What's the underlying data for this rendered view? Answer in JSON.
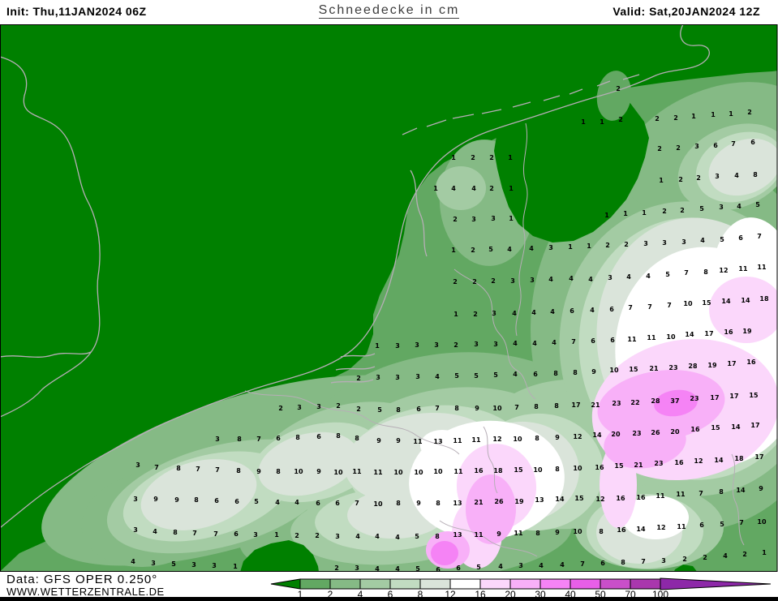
{
  "header": {
    "init_label": "Init: Thu,11JAN2024 06Z",
    "title": "Schneedecke in cm",
    "valid_label": "Valid: Sat,20JAN2024 12Z"
  },
  "footer": {
    "data_source": "Data: GFS OPER 0.250°",
    "website": "WWW.WETTERZENTRALE.DE"
  },
  "legend": {
    "labels": [
      "1",
      "2",
      "4",
      "6",
      "8",
      "12",
      "16",
      "20",
      "30",
      "40",
      "50",
      "70",
      "100"
    ],
    "colors": [
      "#008000",
      "#62a862",
      "#85ba85",
      "#a3cba3",
      "#c1dcc1",
      "#dae4da",
      "#ffffff",
      "#fbd7fb",
      "#f8b0f8",
      "#f583f5",
      "#e85fe8",
      "#c94fc9",
      "#a937ad",
      "#8d28a8"
    ]
  },
  "map": {
    "background": "#008000",
    "coast_color": "#b6aeb6",
    "value_color": "#000000",
    "values": [
      [
        762,
        110,
        "2"
      ],
      [
        719,
        151,
        "1"
      ],
      [
        742,
        151,
        "1"
      ],
      [
        765,
        148,
        "2"
      ],
      [
        810,
        147,
        "2"
      ],
      [
        833,
        146,
        "2"
      ],
      [
        855,
        144,
        "1"
      ],
      [
        879,
        142,
        "1"
      ],
      [
        901,
        141,
        "1"
      ],
      [
        924,
        139,
        "2"
      ],
      [
        559,
        195,
        "1"
      ],
      [
        583,
        195,
        "2"
      ],
      [
        606,
        195,
        "2"
      ],
      [
        629,
        195,
        "1"
      ],
      [
        813,
        184,
        "2"
      ],
      [
        836,
        183,
        "2"
      ],
      [
        859,
        181,
        "3"
      ],
      [
        882,
        180,
        "6"
      ],
      [
        904,
        178,
        "7"
      ],
      [
        928,
        176,
        "6"
      ],
      [
        537,
        233,
        "1"
      ],
      [
        559,
        233,
        "4"
      ],
      [
        584,
        233,
        "4"
      ],
      [
        606,
        233,
        "2"
      ],
      [
        630,
        233,
        "1"
      ],
      [
        815,
        223,
        "1"
      ],
      [
        839,
        222,
        "2"
      ],
      [
        861,
        220,
        "2"
      ],
      [
        884,
        218,
        "3"
      ],
      [
        908,
        217,
        "4"
      ],
      [
        931,
        216,
        "8"
      ],
      [
        561,
        271,
        "2"
      ],
      [
        584,
        271,
        "3"
      ],
      [
        608,
        270,
        "3"
      ],
      [
        630,
        270,
        "1"
      ],
      [
        748,
        266,
        "1"
      ],
      [
        771,
        264,
        "1"
      ],
      [
        794,
        263,
        "1"
      ],
      [
        819,
        261,
        "2"
      ],
      [
        841,
        260,
        "2"
      ],
      [
        865,
        258,
        "5"
      ],
      [
        889,
        256,
        "3"
      ],
      [
        911,
        255,
        "4"
      ],
      [
        934,
        253,
        "5"
      ],
      [
        559,
        309,
        "1"
      ],
      [
        583,
        309,
        "2"
      ],
      [
        605,
        308,
        "5"
      ],
      [
        628,
        308,
        "4"
      ],
      [
        655,
        307,
        "4"
      ],
      [
        679,
        306,
        "3"
      ],
      [
        703,
        305,
        "1"
      ],
      [
        726,
        304,
        "1"
      ],
      [
        749,
        303,
        "2"
      ],
      [
        772,
        302,
        "2"
      ],
      [
        796,
        301,
        "3"
      ],
      [
        819,
        300,
        "3"
      ],
      [
        843,
        299,
        "3"
      ],
      [
        866,
        297,
        "4"
      ],
      [
        890,
        296,
        "5"
      ],
      [
        913,
        294,
        "6"
      ],
      [
        936,
        292,
        "7"
      ],
      [
        561,
        348,
        "2"
      ],
      [
        585,
        348,
        "2"
      ],
      [
        608,
        347,
        "2"
      ],
      [
        632,
        347,
        "3"
      ],
      [
        656,
        346,
        "3"
      ],
      [
        679,
        345,
        "4"
      ],
      [
        704,
        344,
        "4"
      ],
      [
        728,
        345,
        "4"
      ],
      [
        752,
        343,
        "3"
      ],
      [
        775,
        342,
        "4"
      ],
      [
        799,
        341,
        "4"
      ],
      [
        823,
        339,
        "5"
      ],
      [
        846,
        337,
        "7"
      ],
      [
        870,
        336,
        "8"
      ],
      [
        892,
        334,
        "12"
      ],
      [
        916,
        332,
        "11"
      ],
      [
        939,
        330,
        "11"
      ],
      [
        562,
        388,
        "1"
      ],
      [
        586,
        388,
        "2"
      ],
      [
        609,
        387,
        "3"
      ],
      [
        634,
        387,
        "4"
      ],
      [
        658,
        386,
        "4"
      ],
      [
        681,
        385,
        "4"
      ],
      [
        705,
        384,
        "6"
      ],
      [
        730,
        383,
        "4"
      ],
      [
        754,
        382,
        "6"
      ],
      [
        777,
        380,
        "7"
      ],
      [
        801,
        379,
        "7"
      ],
      [
        825,
        377,
        "7"
      ],
      [
        848,
        375,
        "10"
      ],
      [
        871,
        374,
        "15"
      ],
      [
        895,
        372,
        "14"
      ],
      [
        919,
        371,
        "14"
      ],
      [
        942,
        369,
        "18"
      ],
      [
        465,
        427,
        "1"
      ],
      [
        490,
        427,
        "3"
      ],
      [
        514,
        426,
        "3"
      ],
      [
        538,
        426,
        "3"
      ],
      [
        562,
        426,
        "2"
      ],
      [
        587,
        425,
        "3"
      ],
      [
        611,
        425,
        "3"
      ],
      [
        635,
        424,
        "4"
      ],
      [
        659,
        424,
        "4"
      ],
      [
        683,
        423,
        "4"
      ],
      [
        707,
        422,
        "7"
      ],
      [
        731,
        421,
        "6"
      ],
      [
        755,
        420,
        "6"
      ],
      [
        779,
        419,
        "11"
      ],
      [
        803,
        417,
        "11"
      ],
      [
        827,
        416,
        "10"
      ],
      [
        850,
        413,
        "14"
      ],
      [
        874,
        412,
        "17"
      ],
      [
        898,
        410,
        "16"
      ],
      [
        921,
        409,
        "19"
      ],
      [
        442,
        467,
        "2"
      ],
      [
        466,
        466,
        "3"
      ],
      [
        490,
        466,
        "3"
      ],
      [
        515,
        465,
        "3"
      ],
      [
        539,
        465,
        "4"
      ],
      [
        563,
        464,
        "5"
      ],
      [
        587,
        464,
        "5"
      ],
      [
        611,
        463,
        "5"
      ],
      [
        635,
        462,
        "4"
      ],
      [
        660,
        462,
        "6"
      ],
      [
        685,
        461,
        "8"
      ],
      [
        709,
        460,
        "8"
      ],
      [
        732,
        459,
        "9"
      ],
      [
        757,
        457,
        "10"
      ],
      [
        781,
        456,
        "15"
      ],
      [
        806,
        455,
        "21"
      ],
      [
        830,
        454,
        "23"
      ],
      [
        854,
        452,
        "28"
      ],
      [
        878,
        451,
        "19"
      ],
      [
        902,
        449,
        "17"
      ],
      [
        926,
        447,
        "16"
      ],
      [
        346,
        504,
        "2"
      ],
      [
        369,
        503,
        "3"
      ],
      [
        393,
        502,
        "3"
      ],
      [
        417,
        501,
        "2"
      ],
      [
        442,
        505,
        "2"
      ],
      [
        468,
        506,
        "5"
      ],
      [
        491,
        506,
        "8"
      ],
      [
        516,
        505,
        "6"
      ],
      [
        539,
        504,
        "7"
      ],
      [
        563,
        504,
        "8"
      ],
      [
        588,
        504,
        "9"
      ],
      [
        613,
        504,
        "10"
      ],
      [
        637,
        503,
        "7"
      ],
      [
        661,
        502,
        "8"
      ],
      [
        686,
        501,
        "8"
      ],
      [
        710,
        500,
        "17"
      ],
      [
        734,
        500,
        "21"
      ],
      [
        760,
        498,
        "23"
      ],
      [
        783,
        497,
        "22"
      ],
      [
        808,
        495,
        "28"
      ],
      [
        832,
        495,
        "37"
      ],
      [
        856,
        492,
        "23"
      ],
      [
        881,
        491,
        "17"
      ],
      [
        905,
        489,
        "17"
      ],
      [
        929,
        488,
        "15"
      ],
      [
        268,
        542,
        "3"
      ],
      [
        295,
        542,
        "8"
      ],
      [
        319,
        542,
        "7"
      ],
      [
        343,
        541,
        "6"
      ],
      [
        367,
        540,
        "8"
      ],
      [
        393,
        539,
        "6"
      ],
      [
        417,
        538,
        "8"
      ],
      [
        440,
        541,
        "8"
      ],
      [
        467,
        544,
        "9"
      ],
      [
        491,
        544,
        "9"
      ],
      [
        515,
        545,
        "11"
      ],
      [
        540,
        545,
        "13"
      ],
      [
        564,
        544,
        "11"
      ],
      [
        587,
        543,
        "11"
      ],
      [
        613,
        542,
        "12"
      ],
      [
        638,
        542,
        "10"
      ],
      [
        662,
        541,
        "8"
      ],
      [
        687,
        540,
        "9"
      ],
      [
        712,
        539,
        "12"
      ],
      [
        736,
        537,
        "14"
      ],
      [
        759,
        536,
        "20"
      ],
      [
        785,
        535,
        "23"
      ],
      [
        808,
        534,
        "26"
      ],
      [
        832,
        533,
        "20"
      ],
      [
        857,
        530,
        "16"
      ],
      [
        882,
        528,
        "15"
      ],
      [
        907,
        527,
        "14"
      ],
      [
        931,
        525,
        "17"
      ],
      [
        170,
        574,
        "3"
      ],
      [
        193,
        577,
        "7"
      ],
      [
        220,
        578,
        "8"
      ],
      [
        244,
        579,
        "7"
      ],
      [
        268,
        580,
        "7"
      ],
      [
        294,
        581,
        "8"
      ],
      [
        319,
        582,
        "9"
      ],
      [
        343,
        582,
        "8"
      ],
      [
        368,
        582,
        "10"
      ],
      [
        393,
        582,
        "9"
      ],
      [
        417,
        583,
        "10"
      ],
      [
        440,
        582,
        "11"
      ],
      [
        466,
        583,
        "11"
      ],
      [
        491,
        583,
        "10"
      ],
      [
        516,
        583,
        "10"
      ],
      [
        540,
        582,
        "10"
      ],
      [
        565,
        582,
        "11"
      ],
      [
        590,
        581,
        "16"
      ],
      [
        614,
        581,
        "18"
      ],
      [
        639,
        580,
        "15"
      ],
      [
        663,
        580,
        "10"
      ],
      [
        687,
        579,
        "8"
      ],
      [
        712,
        578,
        "10"
      ],
      [
        739,
        577,
        "16"
      ],
      [
        763,
        575,
        "15"
      ],
      [
        787,
        574,
        "21"
      ],
      [
        812,
        572,
        "23"
      ],
      [
        837,
        571,
        "16"
      ],
      [
        861,
        569,
        "12"
      ],
      [
        886,
        568,
        "14"
      ],
      [
        911,
        566,
        "18"
      ],
      [
        936,
        564,
        "17"
      ],
      [
        167,
        616,
        "3"
      ],
      [
        192,
        616,
        "9"
      ],
      [
        218,
        617,
        "9"
      ],
      [
        242,
        617,
        "8"
      ],
      [
        267,
        618,
        "6"
      ],
      [
        292,
        619,
        "6"
      ],
      [
        316,
        619,
        "5"
      ],
      [
        342,
        620,
        "4"
      ],
      [
        366,
        620,
        "4"
      ],
      [
        392,
        621,
        "6"
      ],
      [
        416,
        621,
        "6"
      ],
      [
        440,
        621,
        "7"
      ],
      [
        466,
        622,
        "10"
      ],
      [
        491,
        621,
        "8"
      ],
      [
        516,
        621,
        "9"
      ],
      [
        540,
        621,
        "8"
      ],
      [
        564,
        621,
        "13"
      ],
      [
        590,
        620,
        "21"
      ],
      [
        615,
        619,
        "26"
      ],
      [
        640,
        619,
        "19"
      ],
      [
        665,
        617,
        "13"
      ],
      [
        690,
        616,
        "14"
      ],
      [
        714,
        615,
        "15"
      ],
      [
        740,
        616,
        "12"
      ],
      [
        765,
        615,
        "16"
      ],
      [
        790,
        614,
        "16"
      ],
      [
        814,
        612,
        "11"
      ],
      [
        839,
        610,
        "11"
      ],
      [
        864,
        609,
        "7"
      ],
      [
        889,
        607,
        "8"
      ],
      [
        913,
        605,
        "14"
      ],
      [
        938,
        603,
        "9"
      ],
      [
        167,
        654,
        "3"
      ],
      [
        191,
        656,
        "4"
      ],
      [
        216,
        657,
        "8"
      ],
      [
        240,
        658,
        "7"
      ],
      [
        266,
        659,
        "7"
      ],
      [
        291,
        659,
        "6"
      ],
      [
        315,
        660,
        "3"
      ],
      [
        341,
        660,
        "1"
      ],
      [
        366,
        661,
        "2"
      ],
      [
        391,
        661,
        "2"
      ],
      [
        416,
        662,
        "3"
      ],
      [
        441,
        662,
        "4"
      ],
      [
        465,
        662,
        "4"
      ],
      [
        490,
        663,
        "4"
      ],
      [
        514,
        662,
        "5"
      ],
      [
        539,
        662,
        "8"
      ],
      [
        564,
        660,
        "13"
      ],
      [
        590,
        660,
        "11"
      ],
      [
        615,
        659,
        "9"
      ],
      [
        639,
        658,
        "11"
      ],
      [
        663,
        658,
        "8"
      ],
      [
        687,
        657,
        "9"
      ],
      [
        712,
        656,
        "10"
      ],
      [
        741,
        656,
        "8"
      ],
      [
        766,
        654,
        "16"
      ],
      [
        790,
        653,
        "14"
      ],
      [
        815,
        651,
        "12"
      ],
      [
        840,
        650,
        "11"
      ],
      [
        865,
        648,
        "6"
      ],
      [
        890,
        647,
        "5"
      ],
      [
        914,
        645,
        "7"
      ],
      [
        939,
        644,
        "10"
      ],
      [
        164,
        693,
        "4"
      ],
      [
        189,
        695,
        "3"
      ],
      [
        214,
        696,
        "5"
      ],
      [
        239,
        697,
        "3"
      ],
      [
        264,
        698,
        "3"
      ],
      [
        290,
        699,
        "1"
      ],
      [
        415,
        701,
        "2"
      ],
      [
        440,
        701,
        "3"
      ],
      [
        465,
        702,
        "4"
      ],
      [
        490,
        702,
        "4"
      ],
      [
        515,
        702,
        "5"
      ],
      [
        540,
        703,
        "6"
      ],
      [
        565,
        701,
        "6"
      ],
      [
        590,
        700,
        "5"
      ],
      [
        617,
        699,
        "4"
      ],
      [
        642,
        698,
        "3"
      ],
      [
        667,
        698,
        "4"
      ],
      [
        693,
        697,
        "4"
      ],
      [
        718,
        696,
        "7"
      ],
      [
        743,
        695,
        "6"
      ],
      [
        768,
        694,
        "8"
      ],
      [
        793,
        693,
        "7"
      ],
      [
        818,
        692,
        "3"
      ],
      [
        844,
        690,
        "2"
      ],
      [
        869,
        688,
        "2"
      ],
      [
        894,
        686,
        "4"
      ],
      [
        918,
        684,
        "2"
      ],
      [
        942,
        682,
        "1"
      ]
    ]
  }
}
